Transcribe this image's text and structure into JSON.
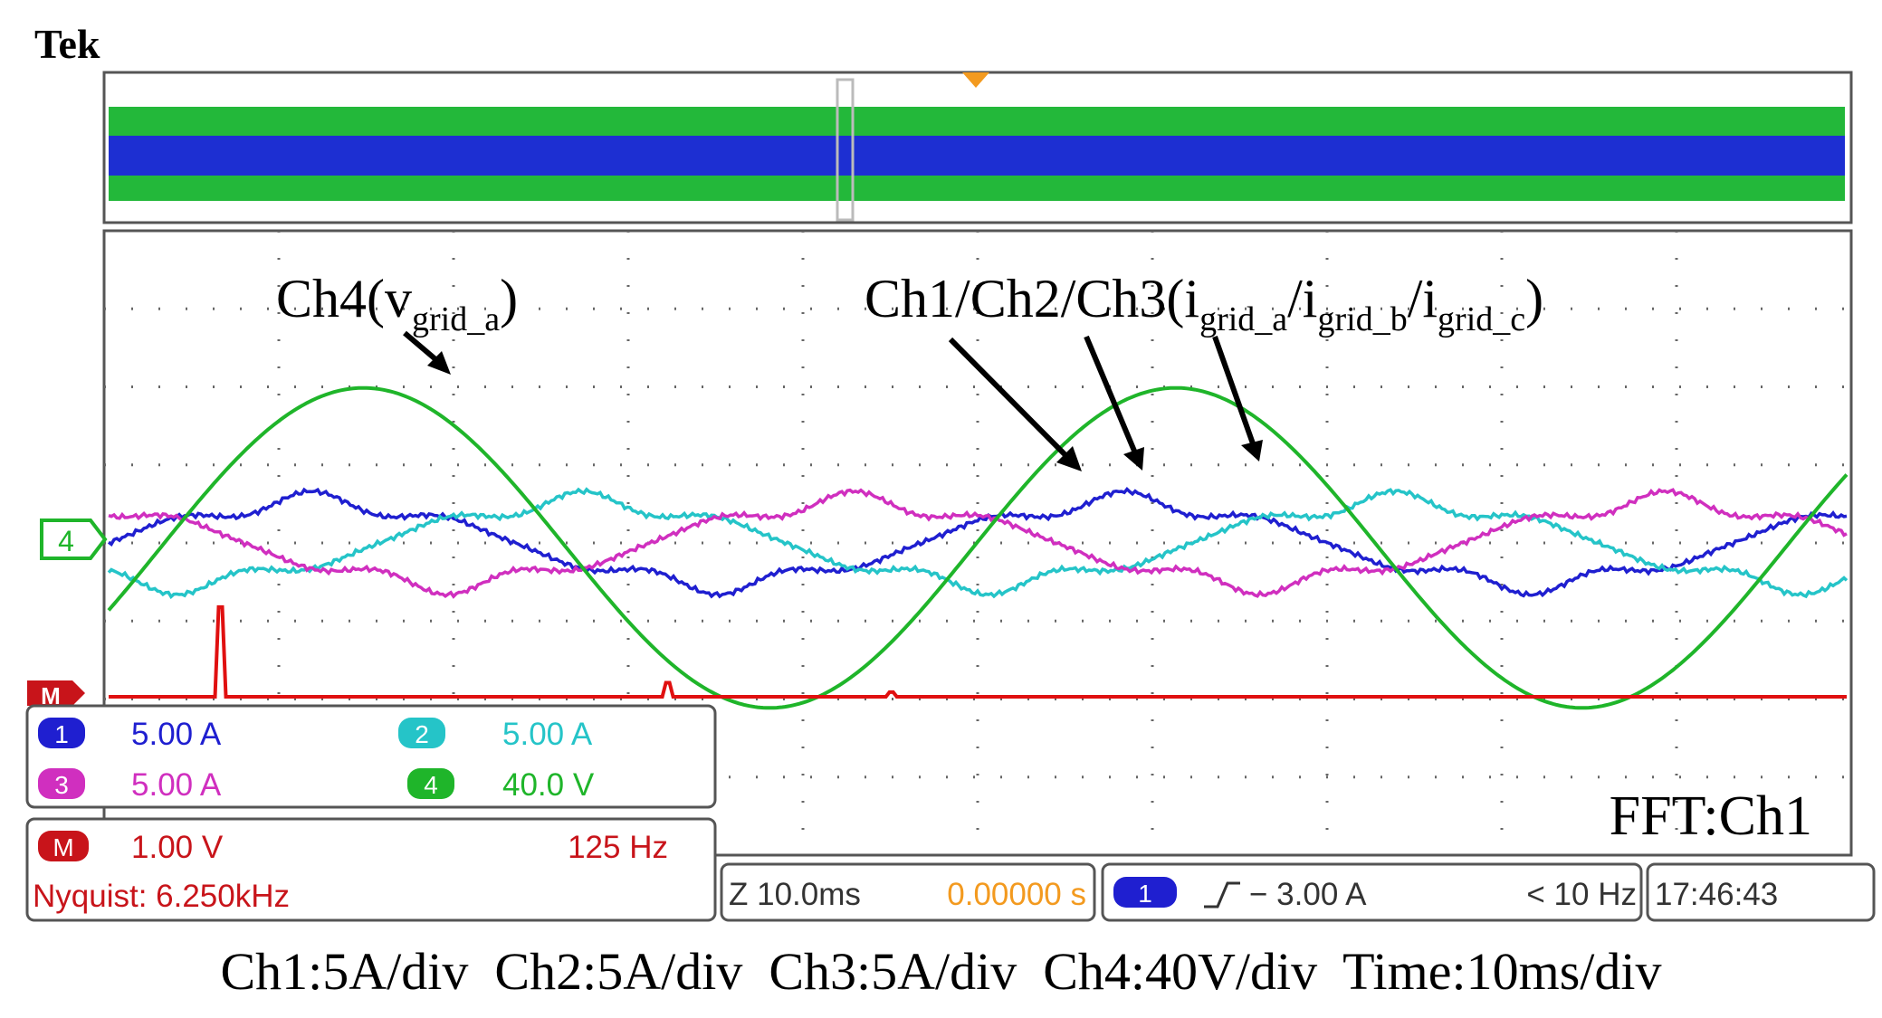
{
  "brand": "Tek",
  "annotations": {
    "voltage": {
      "main": "Ch4(v",
      "sub": "grid_a",
      "close": ")"
    },
    "currents": {
      "main": "Ch1/Ch2/Ch3(i",
      "sub1": "grid_a",
      "sep1": "/i",
      "sub2": "grid_b",
      "sep2": "/i",
      "sub3": "grid_c",
      "close": ")"
    },
    "fft": "FFT:Ch1"
  },
  "markers": {
    "ch4_ground": "4",
    "math_ground": "M"
  },
  "channels": [
    {
      "id": "1",
      "scale": "5.00 A",
      "color": "#1f1fd0"
    },
    {
      "id": "2",
      "scale": "5.00 A",
      "color": "#25c4c8"
    },
    {
      "id": "3",
      "scale": "5.00 A",
      "color": "#d02fbf"
    },
    {
      "id": "4",
      "scale": "40.0 V",
      "color": "#1fb52a"
    }
  ],
  "math": {
    "id": "M",
    "scale": "1.00 V",
    "freq": "125 Hz",
    "nyquist": "Nyquist: 6.250kHz",
    "color": "#e01010"
  },
  "timebase": {
    "zoom": "Z 10.0ms",
    "position": "0.00000 s"
  },
  "trigger": {
    "source": "1",
    "level": "− 3.00 A",
    "rate": "< 10 Hz",
    "slope_icon": "rising-edge-icon"
  },
  "clock": "17:46:43",
  "caption": "Ch1:5A/div  Ch2:5A/div  Ch3:5A/div  Ch4:40V/div  Time:10ms/div",
  "chart_data": {
    "type": "line",
    "title": "",
    "xlabel": "",
    "ylabel": "",
    "x_divisions": 10,
    "y_divisions": 8,
    "grid": true,
    "fundamental_hz": 50,
    "time_per_div": "10ms",
    "series": [
      {
        "name": "Ch1",
        "quantity": "i_grid_a",
        "unit_per_div": "5A",
        "amplitude_div": 0.65,
        "phase_deg": 0,
        "color": "#1f1fd0"
      },
      {
        "name": "Ch2",
        "quantity": "i_grid_b",
        "unit_per_div": "5A",
        "amplitude_div": 0.65,
        "phase_deg": -120,
        "color": "#25c4c8"
      },
      {
        "name": "Ch3",
        "quantity": "i_grid_c",
        "unit_per_div": "5A",
        "amplitude_div": 0.65,
        "phase_deg": 120,
        "color": "#d02fbf"
      },
      {
        "name": "Ch4",
        "quantity": "v_grid_a",
        "unit_per_div": "40V",
        "amplitude_div": 2.05,
        "phase_deg": 0,
        "color": "#1fb52a"
      }
    ],
    "fft": {
      "source": "Ch1",
      "unit_per_div": "1.00 V",
      "freq_per_div": "125 Hz",
      "peaks": [
        {
          "freq_hz": 50,
          "height_div": 1.15
        },
        {
          "freq_hz": 250,
          "height_div": 0.18
        },
        {
          "freq_hz": 350,
          "height_div": 0.06
        }
      ],
      "color": "#e01010"
    }
  }
}
